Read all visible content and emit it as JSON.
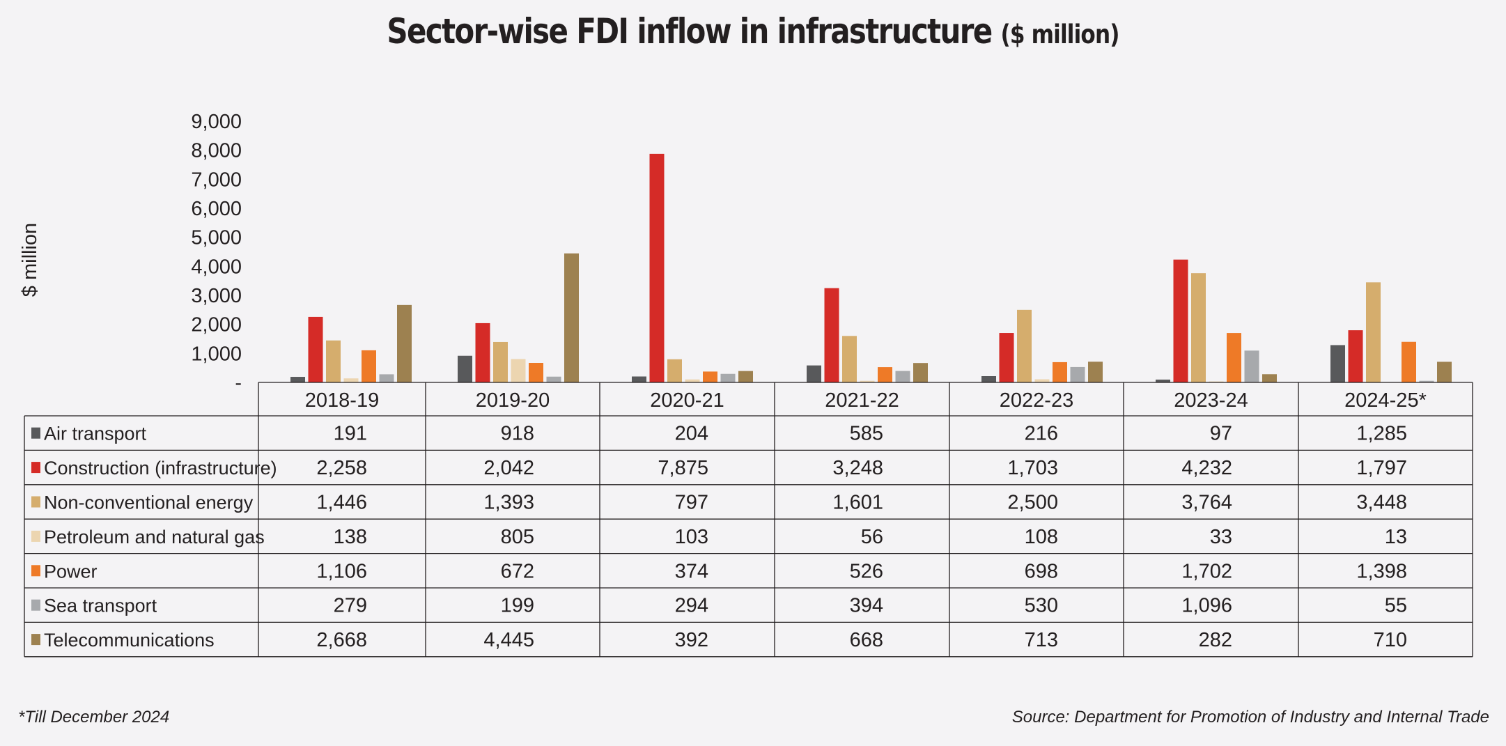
{
  "chart_data": {
    "type": "bar",
    "title": "Sector-wise FDI inflow in infrastructure",
    "subtitle": "($ million)",
    "ylabel": "$ million",
    "ylim": [
      0,
      9000
    ],
    "yticks": [
      0,
      1000,
      2000,
      3000,
      4000,
      5000,
      6000,
      7000,
      8000,
      9000
    ],
    "ytick_labels": [
      "-",
      "1,000",
      "2,000",
      "3,000",
      "4,000",
      "5,000",
      "6,000",
      "7,000",
      "8,000",
      "9,000"
    ],
    "grid": false,
    "legend": "data-table",
    "categories": [
      "2018-19",
      "2019-20",
      "2020-21",
      "2021-22",
      "2022-23",
      "2023-24",
      "2024-25*"
    ],
    "series": [
      {
        "name": "Air transport",
        "color": "#58595b",
        "values": [
          191,
          918,
          204,
          585,
          216,
          97,
          1285
        ],
        "labels": [
          "191",
          "918",
          "204",
          "585",
          "216",
          "97",
          "1,285"
        ]
      },
      {
        "name": "Construction (infrastructure)",
        "color": "#d52b27",
        "values": [
          2258,
          2042,
          7875,
          3248,
          1703,
          4232,
          1797
        ],
        "labels": [
          "2,258",
          "2,042",
          "7,875",
          "3,248",
          "1,703",
          "4,232",
          "1,797"
        ]
      },
      {
        "name": "Non-conventional energy",
        "color": "#d5ad6d",
        "values": [
          1446,
          1393,
          797,
          1601,
          2500,
          3764,
          3448
        ],
        "labels": [
          "1,446",
          "1,393",
          "797",
          "1,601",
          "2,500",
          "3,764",
          "3,448"
        ]
      },
      {
        "name": "Petroleum and natural gas",
        "color": "#ecd5b0",
        "values": [
          138,
          805,
          103,
          56,
          108,
          33,
          13
        ],
        "labels": [
          "138",
          "805",
          "103",
          "56",
          "108",
          "33",
          "13"
        ]
      },
      {
        "name": "Power",
        "color": "#ee7a27",
        "values": [
          1106,
          672,
          374,
          526,
          698,
          1702,
          1398
        ],
        "labels": [
          "1,106",
          "672",
          "374",
          "526",
          "698",
          "1,702",
          "1,398"
        ]
      },
      {
        "name": "Sea transport",
        "color": "#a7a9ac",
        "values": [
          279,
          199,
          294,
          394,
          530,
          1096,
          55
        ],
        "labels": [
          "279",
          "199",
          "294",
          "394",
          "530",
          "1,096",
          "55"
        ]
      },
      {
        "name": "Telecommunications",
        "color": "#9d8150",
        "values": [
          2668,
          4445,
          392,
          668,
          713,
          282,
          710
        ],
        "labels": [
          "2,668",
          "4,445",
          "392",
          "668",
          "713",
          "282",
          "710"
        ]
      }
    ]
  },
  "footnote": "*Till December 2024",
  "source": "Source: Department for Promotion of Industry and Internal Trade"
}
